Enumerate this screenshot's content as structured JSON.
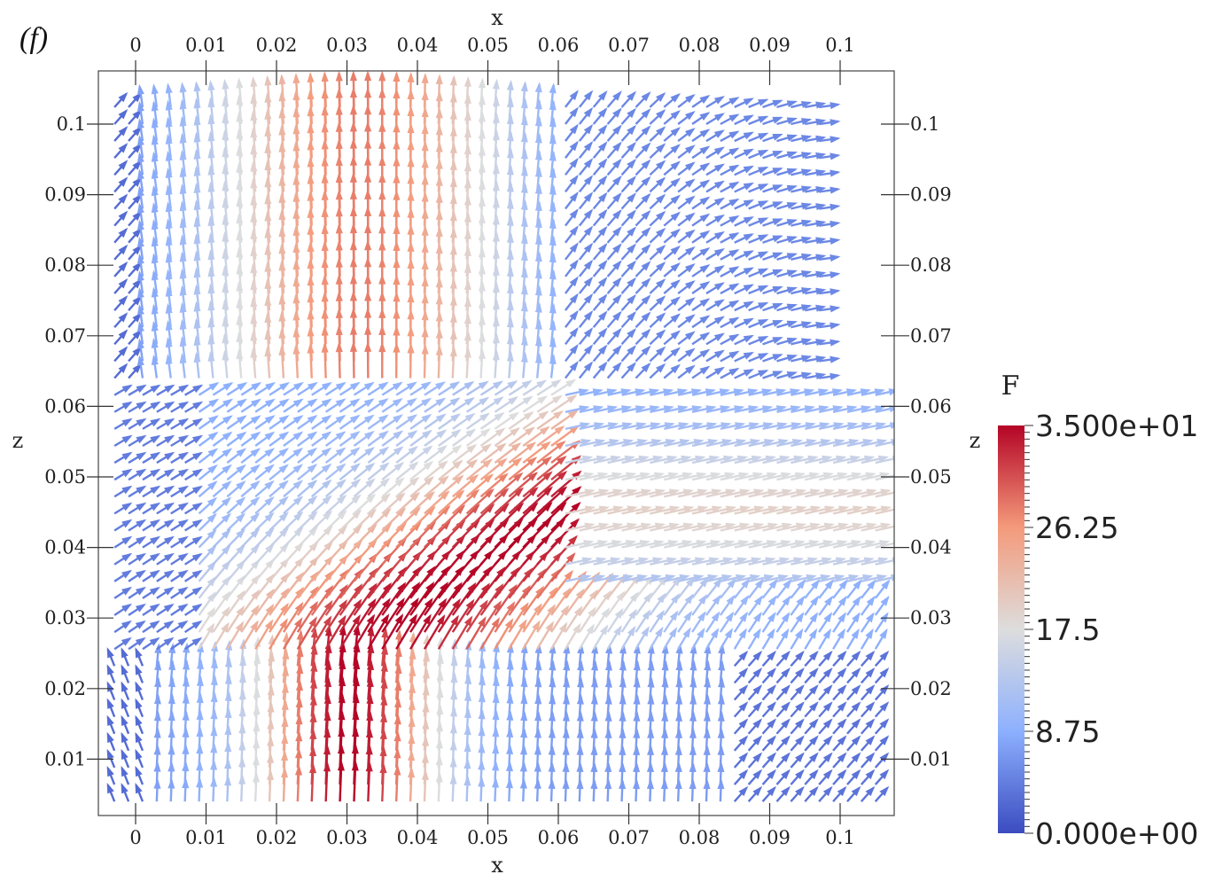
{
  "panel_label": "(f)",
  "chart_data": {
    "type": "vector_field",
    "title": "",
    "xlabel": "x",
    "ylabel": "z",
    "right_axis_label": "z",
    "xlim": [
      -0.005,
      0.108
    ],
    "ylim": [
      0.0,
      0.108
    ],
    "x_ticks": [
      0,
      0.01,
      0.02,
      0.03,
      0.04,
      0.05,
      0.06,
      0.07,
      0.08,
      0.09,
      0.1
    ],
    "x_tick_labels": [
      "0",
      "0.01",
      "0.02",
      "0.03",
      "0.04",
      "0.05",
      "0.06",
      "0.07",
      "0.08",
      "0.09",
      "0.1"
    ],
    "y_ticks": [
      0.01,
      0.02,
      0.03,
      0.04,
      0.05,
      0.06,
      0.07,
      0.08,
      0.09,
      0.1
    ],
    "y_tick_labels": [
      "0.01",
      "0.02",
      "0.03",
      "0.04",
      "0.05",
      "0.06",
      "0.07",
      "0.08",
      "0.09",
      "0.1"
    ],
    "grid": false,
    "field": {
      "jet": {
        "inlet_x_center": 0.03,
        "inlet_z": 0.008,
        "outlet_z_range": [
          0.015,
          0.06
        ],
        "peak_magnitude": 35
      },
      "domain_x": [
        -0.003,
        0.106
      ],
      "domain_z": [
        0.003,
        0.105
      ]
    },
    "colorbar": {
      "title": "F",
      "min": 0,
      "max": 35,
      "tick_values": [
        35,
        26.25,
        17.5,
        8.75,
        0
      ],
      "tick_labels": [
        "3.500e+01",
        "26.25",
        "17.5",
        "8.75",
        "0.000e+00"
      ],
      "colormap": "cool-to-warm",
      "colors": [
        "#3b4cc0",
        "#8db0fe",
        "#dddddd",
        "#f49a7b",
        "#b40426"
      ]
    }
  }
}
